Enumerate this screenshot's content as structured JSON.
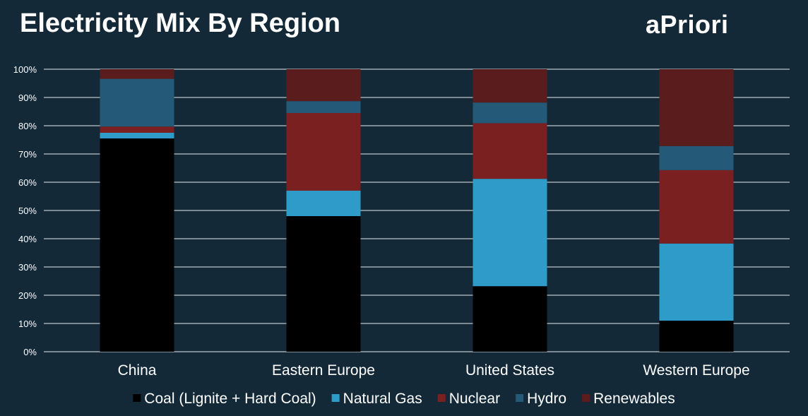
{
  "header": {
    "title": "Electricity Mix By Region",
    "logo_text": "aPriori"
  },
  "chart_data": {
    "type": "bar",
    "stacked": true,
    "categories": [
      "China",
      "Eastern Europe",
      "United States",
      "Western Europe"
    ],
    "series": [
      {
        "name": "Coal (Lignite + Hard Coal)",
        "color": "#000000",
        "values": [
          75.5,
          48,
          23.2,
          11
        ]
      },
      {
        "name": "Natural Gas",
        "color": "#2e9bc9",
        "values": [
          2,
          9,
          38,
          27.3
        ]
      },
      {
        "name": "Nuclear",
        "color": "#7a2020",
        "values": [
          2.2,
          27.5,
          19.7,
          26
        ]
      },
      {
        "name": "Hydro",
        "color": "#245a78",
        "values": [
          16.9,
          4.2,
          7.3,
          8.5
        ]
      },
      {
        "name": "Renewables",
        "color": "#5a1c1c",
        "values": [
          3.4,
          11.3,
          11.8,
          27.2
        ]
      }
    ],
    "ylim": [
      0,
      100
    ],
    "yticks": [
      "0%",
      "10%",
      "20%",
      "30%",
      "40%",
      "50%",
      "60%",
      "70%",
      "80%",
      "90%",
      "100%"
    ],
    "grid": true,
    "gridColor": "#ffffff",
    "legend": "bottom"
  }
}
